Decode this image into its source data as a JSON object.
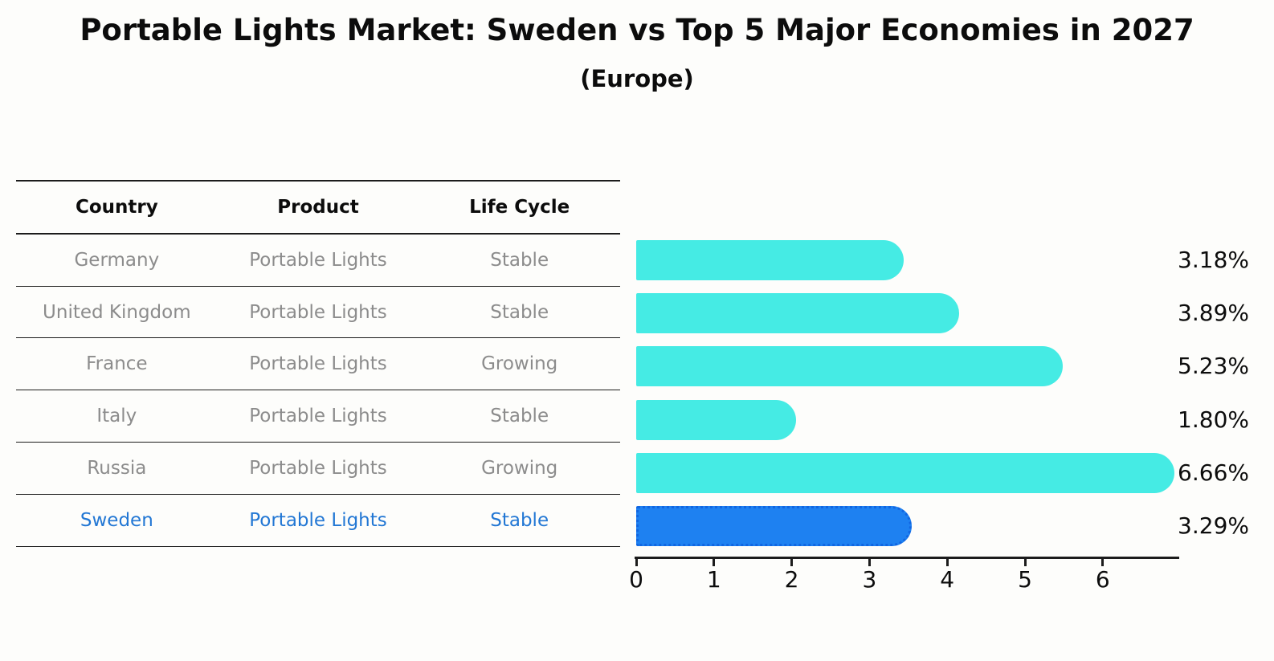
{
  "title": "Portable Lights Market: Sweden vs Top 5 Major Economies in 2027",
  "subtitle": "(Europe)",
  "table": {
    "headers": [
      "Country",
      "Product",
      "Life Cycle"
    ],
    "rows": [
      {
        "country": "Germany",
        "product": "Portable Lights",
        "life_cycle": "Stable",
        "highlight": false
      },
      {
        "country": "United Kingdom",
        "product": "Portable Lights",
        "life_cycle": "Stable",
        "highlight": false
      },
      {
        "country": "France",
        "product": "Portable Lights",
        "life_cycle": "Growing",
        "highlight": false
      },
      {
        "country": "Italy",
        "product": "Portable Lights",
        "life_cycle": "Stable",
        "highlight": false
      },
      {
        "country": "Russia",
        "product": "Portable Lights",
        "life_cycle": "Growing",
        "highlight": false
      },
      {
        "country": "Sweden",
        "product": "Portable Lights",
        "life_cycle": "Stable",
        "highlight": true
      }
    ]
  },
  "chart_data": {
    "type": "bar",
    "orientation": "horizontal",
    "title": "Portable Lights Market: Sweden vs Top 5 Major Economies in 2027 (Europe)",
    "categories": [
      "Germany",
      "United Kingdom",
      "France",
      "Italy",
      "Russia",
      "Sweden"
    ],
    "values": [
      3.18,
      3.89,
      5.23,
      1.8,
      6.66,
      3.29
    ],
    "value_labels": [
      "3.18%",
      "3.89%",
      "5.23%",
      "1.80%",
      "6.66%",
      "3.29%"
    ],
    "unit": "percent market share",
    "x_ticks": [
      0,
      1,
      2,
      3,
      4,
      5,
      6
    ],
    "xlim": [
      0,
      6.98
    ],
    "grid": false,
    "legend": "none",
    "highlight_category": "Sweden",
    "colors": {
      "bar": "#45ebe4",
      "highlight_bar": "#1e81f1",
      "highlight_border": "#1166e2",
      "axis": "#1c1c1c",
      "table_text": "#8c8c8c",
      "highlight_text": "#2277d4"
    }
  }
}
